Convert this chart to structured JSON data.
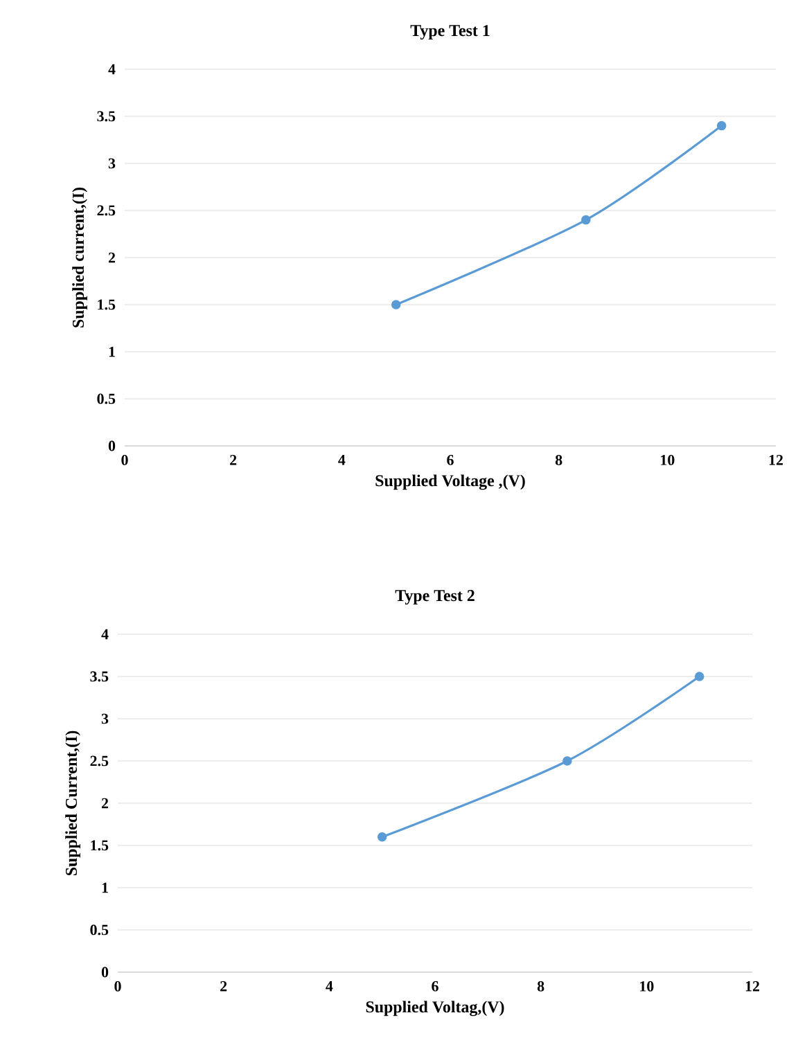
{
  "chart_data": [
    {
      "type": "line",
      "title": "Type Test 1",
      "xlabel": "Supplied Voltage ,(V)",
      "ylabel": "Supplied current,(I)",
      "xlim": [
        0,
        12
      ],
      "ylim": [
        0,
        4
      ],
      "xticks": [
        0,
        2,
        4,
        6,
        8,
        10,
        12
      ],
      "yticks": [
        0,
        0.5,
        1,
        1.5,
        2,
        2.5,
        3,
        3.5,
        4
      ],
      "grid": "y",
      "marker": "circle",
      "series": [
        {
          "color": "#5b9bd5",
          "x": [
            5,
            8.5,
            11
          ],
          "values": [
            1.5,
            2.4,
            3.4
          ]
        }
      ]
    },
    {
      "type": "line",
      "title": "Type Test 2",
      "xlabel": "Supplied Voltag,(V)",
      "ylabel": "Supplied Current,(I)",
      "xlim": [
        0,
        12
      ],
      "ylim": [
        0,
        4
      ],
      "xticks": [
        0,
        2,
        4,
        6,
        8,
        10,
        12
      ],
      "yticks": [
        0,
        0.5,
        1,
        1.5,
        2,
        2.5,
        3,
        3.5,
        4
      ],
      "grid": "y",
      "marker": "circle",
      "series": [
        {
          "color": "#5b9bd5",
          "x": [
            5,
            8.5,
            11
          ],
          "values": [
            1.6,
            2.5,
            3.5
          ]
        }
      ]
    }
  ]
}
